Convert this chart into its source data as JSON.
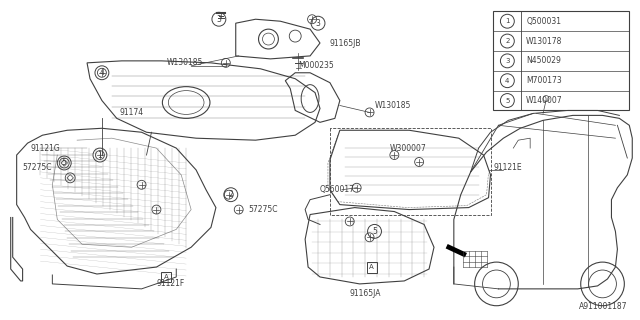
{
  "bg_color": "#ffffff",
  "line_color": "#404040",
  "diagram_id": "A911001187",
  "legend_items": [
    {
      "num": "1",
      "code": "Q500031"
    },
    {
      "num": "2",
      "code": "W130178"
    },
    {
      "num": "3",
      "code": "N450029"
    },
    {
      "num": "4",
      "code": "M700173"
    },
    {
      "num": "5",
      "code": "W140007"
    }
  ],
  "figsize": [
    6.4,
    3.2
  ],
  "dpi": 100
}
